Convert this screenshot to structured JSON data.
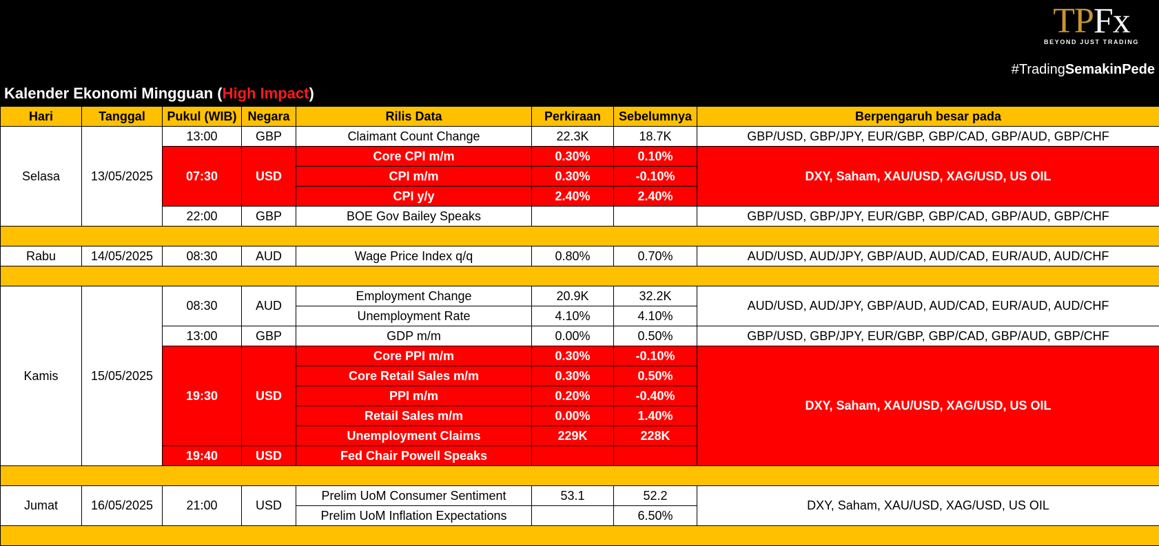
{
  "logo": {
    "tp": "TP",
    "fx": "Fx",
    "tagline": "BEYOND JUST TRADING"
  },
  "hashtag": {
    "prefix": "#Trading",
    "bold": "SemakinPede"
  },
  "title": {
    "main": "Kalender Ekonomi Mingguan (",
    "highlight": "High Impact",
    "end": ")"
  },
  "columns": [
    "Hari",
    "Tanggal",
    "Pukul (WIB)",
    "Negara",
    "Rilis Data",
    "Perkiraan",
    "Sebelumnya",
    "Berpengaruh besar pada"
  ],
  "days": {
    "selasa": {
      "day": "Selasa",
      "date": "13/05/2025"
    },
    "rabu": {
      "day": "Rabu",
      "date": "14/05/2025"
    },
    "kamis": {
      "day": "Kamis",
      "date": "15/05/2025"
    },
    "jumat": {
      "day": "Jumat",
      "date": "16/05/2025"
    }
  },
  "times": {
    "t1300a": "13:00",
    "t0730": "07:30",
    "t2200": "22:00",
    "t0830a": "08:30",
    "t0830b": "08:30",
    "t1300b": "13:00",
    "t1930": "19:30",
    "t1940": "19:40",
    "t2100": "21:00"
  },
  "countries": {
    "gbp": "GBP",
    "usd": "USD",
    "aud": "AUD"
  },
  "events": [
    {
      "name": "Claimant Count Change",
      "forecast": "22.3K",
      "previous": "18.7K"
    },
    {
      "name": "Core CPI m/m",
      "forecast": "0.30%",
      "previous": "0.10%"
    },
    {
      "name": "CPI m/m",
      "forecast": "0.30%",
      "previous": "-0.10%"
    },
    {
      "name": "CPI y/y",
      "forecast": "2.40%",
      "previous": "2.40%"
    },
    {
      "name": "BOE Gov Bailey Speaks",
      "forecast": "",
      "previous": ""
    },
    {
      "name": "Wage Price Index q/q",
      "forecast": "0.80%",
      "previous": "0.70%"
    },
    {
      "name": "Employment Change",
      "forecast": "20.9K",
      "previous": "32.2K"
    },
    {
      "name": "Unemployment Rate",
      "forecast": "4.10%",
      "previous": "4.10%"
    },
    {
      "name": "GDP m/m",
      "forecast": "0.00%",
      "previous": "0.50%"
    },
    {
      "name": "Core PPI m/m",
      "forecast": "0.30%",
      "previous": "-0.10%"
    },
    {
      "name": "Core Retail Sales m/m",
      "forecast": "0.30%",
      "previous": "0.50%"
    },
    {
      "name": "PPI m/m",
      "forecast": "0.20%",
      "previous": "-0.40%"
    },
    {
      "name": "Retail Sales m/m",
      "forecast": "0.00%",
      "previous": "1.40%"
    },
    {
      "name": "Unemployment Claims",
      "forecast": "229K",
      "previous": "228K"
    },
    {
      "name": "Fed Chair Powell Speaks",
      "forecast": "",
      "previous": ""
    },
    {
      "name": "Prelim UoM Consumer Sentiment",
      "forecast": "53.1",
      "previous": "52.2"
    },
    {
      "name": "Prelim UoM Inflation Expectations",
      "forecast": "",
      "previous": "6.50%"
    }
  ],
  "impacts": {
    "gbp": "GBP/USD, GBP/JPY, EUR/GBP, GBP/CAD, GBP/AUD, GBP/CHF",
    "aud": "AUD/USD, AUD/JPY, GBP/AUD, AUD/CAD, EUR/AUD, AUD/CHF",
    "usd": "DXY, Saham, XAU/USD, XAG/USD, US OIL"
  },
  "colors": {
    "header_yellow": "#ffc000",
    "high_red": "#ff0000",
    "logo_gold": "#c8952e"
  }
}
